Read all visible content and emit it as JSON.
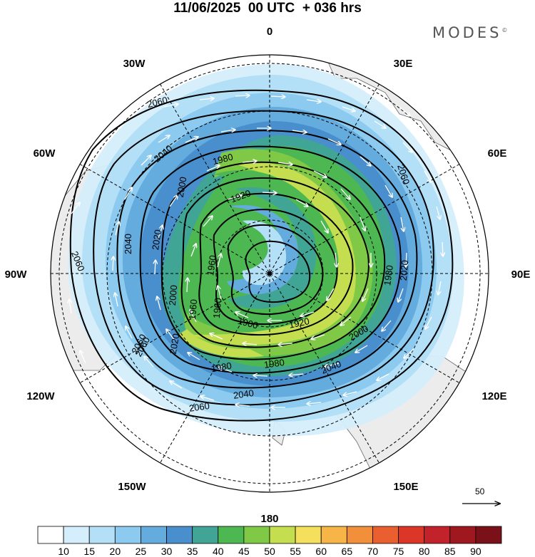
{
  "header": {
    "title": "11/06/2025  00 UTC  + 036 hrs",
    "brand": "MODES",
    "brand_mark": "©"
  },
  "map": {
    "projection": "polar stereographic",
    "longitude_labels": [
      "0",
      "30E",
      "60E",
      "90E",
      "120E",
      "150E",
      "180",
      "150W",
      "120W",
      "90W",
      "60W",
      "30W"
    ],
    "contour_labels": [
      "2060",
      "2040",
      "1980",
      "2060",
      "2060",
      "2000",
      "1920",
      "2060",
      "2040",
      "2020",
      "1960",
      "1960",
      "1980",
      "2020",
      "2000",
      "1920",
      "1900",
      "1960",
      "2060",
      "2020",
      "1980",
      "1980",
      "2000",
      "2040",
      "2040",
      "2060"
    ],
    "colors": {
      "land": "#ececec",
      "contour_line": "#000000",
      "wind_arrow": "#ffffff"
    }
  },
  "reference_vector": {
    "label": "50"
  },
  "colorbar": {
    "labels": [
      "10",
      "15",
      "20",
      "25",
      "30",
      "35",
      "40",
      "45",
      "50",
      "55",
      "60",
      "65",
      "70",
      "75",
      "80",
      "85",
      "90"
    ],
    "colors": [
      "#ffffff",
      "#d4eefb",
      "#b3e0f7",
      "#8ccbef",
      "#65acde",
      "#4a8fcd",
      "#41a595",
      "#4db852",
      "#7fc947",
      "#c4de4f",
      "#f4e05c",
      "#f7b548",
      "#f28f3a",
      "#ea5f30",
      "#db3628",
      "#c2222a",
      "#a0181f",
      "#7a1118"
    ]
  }
}
